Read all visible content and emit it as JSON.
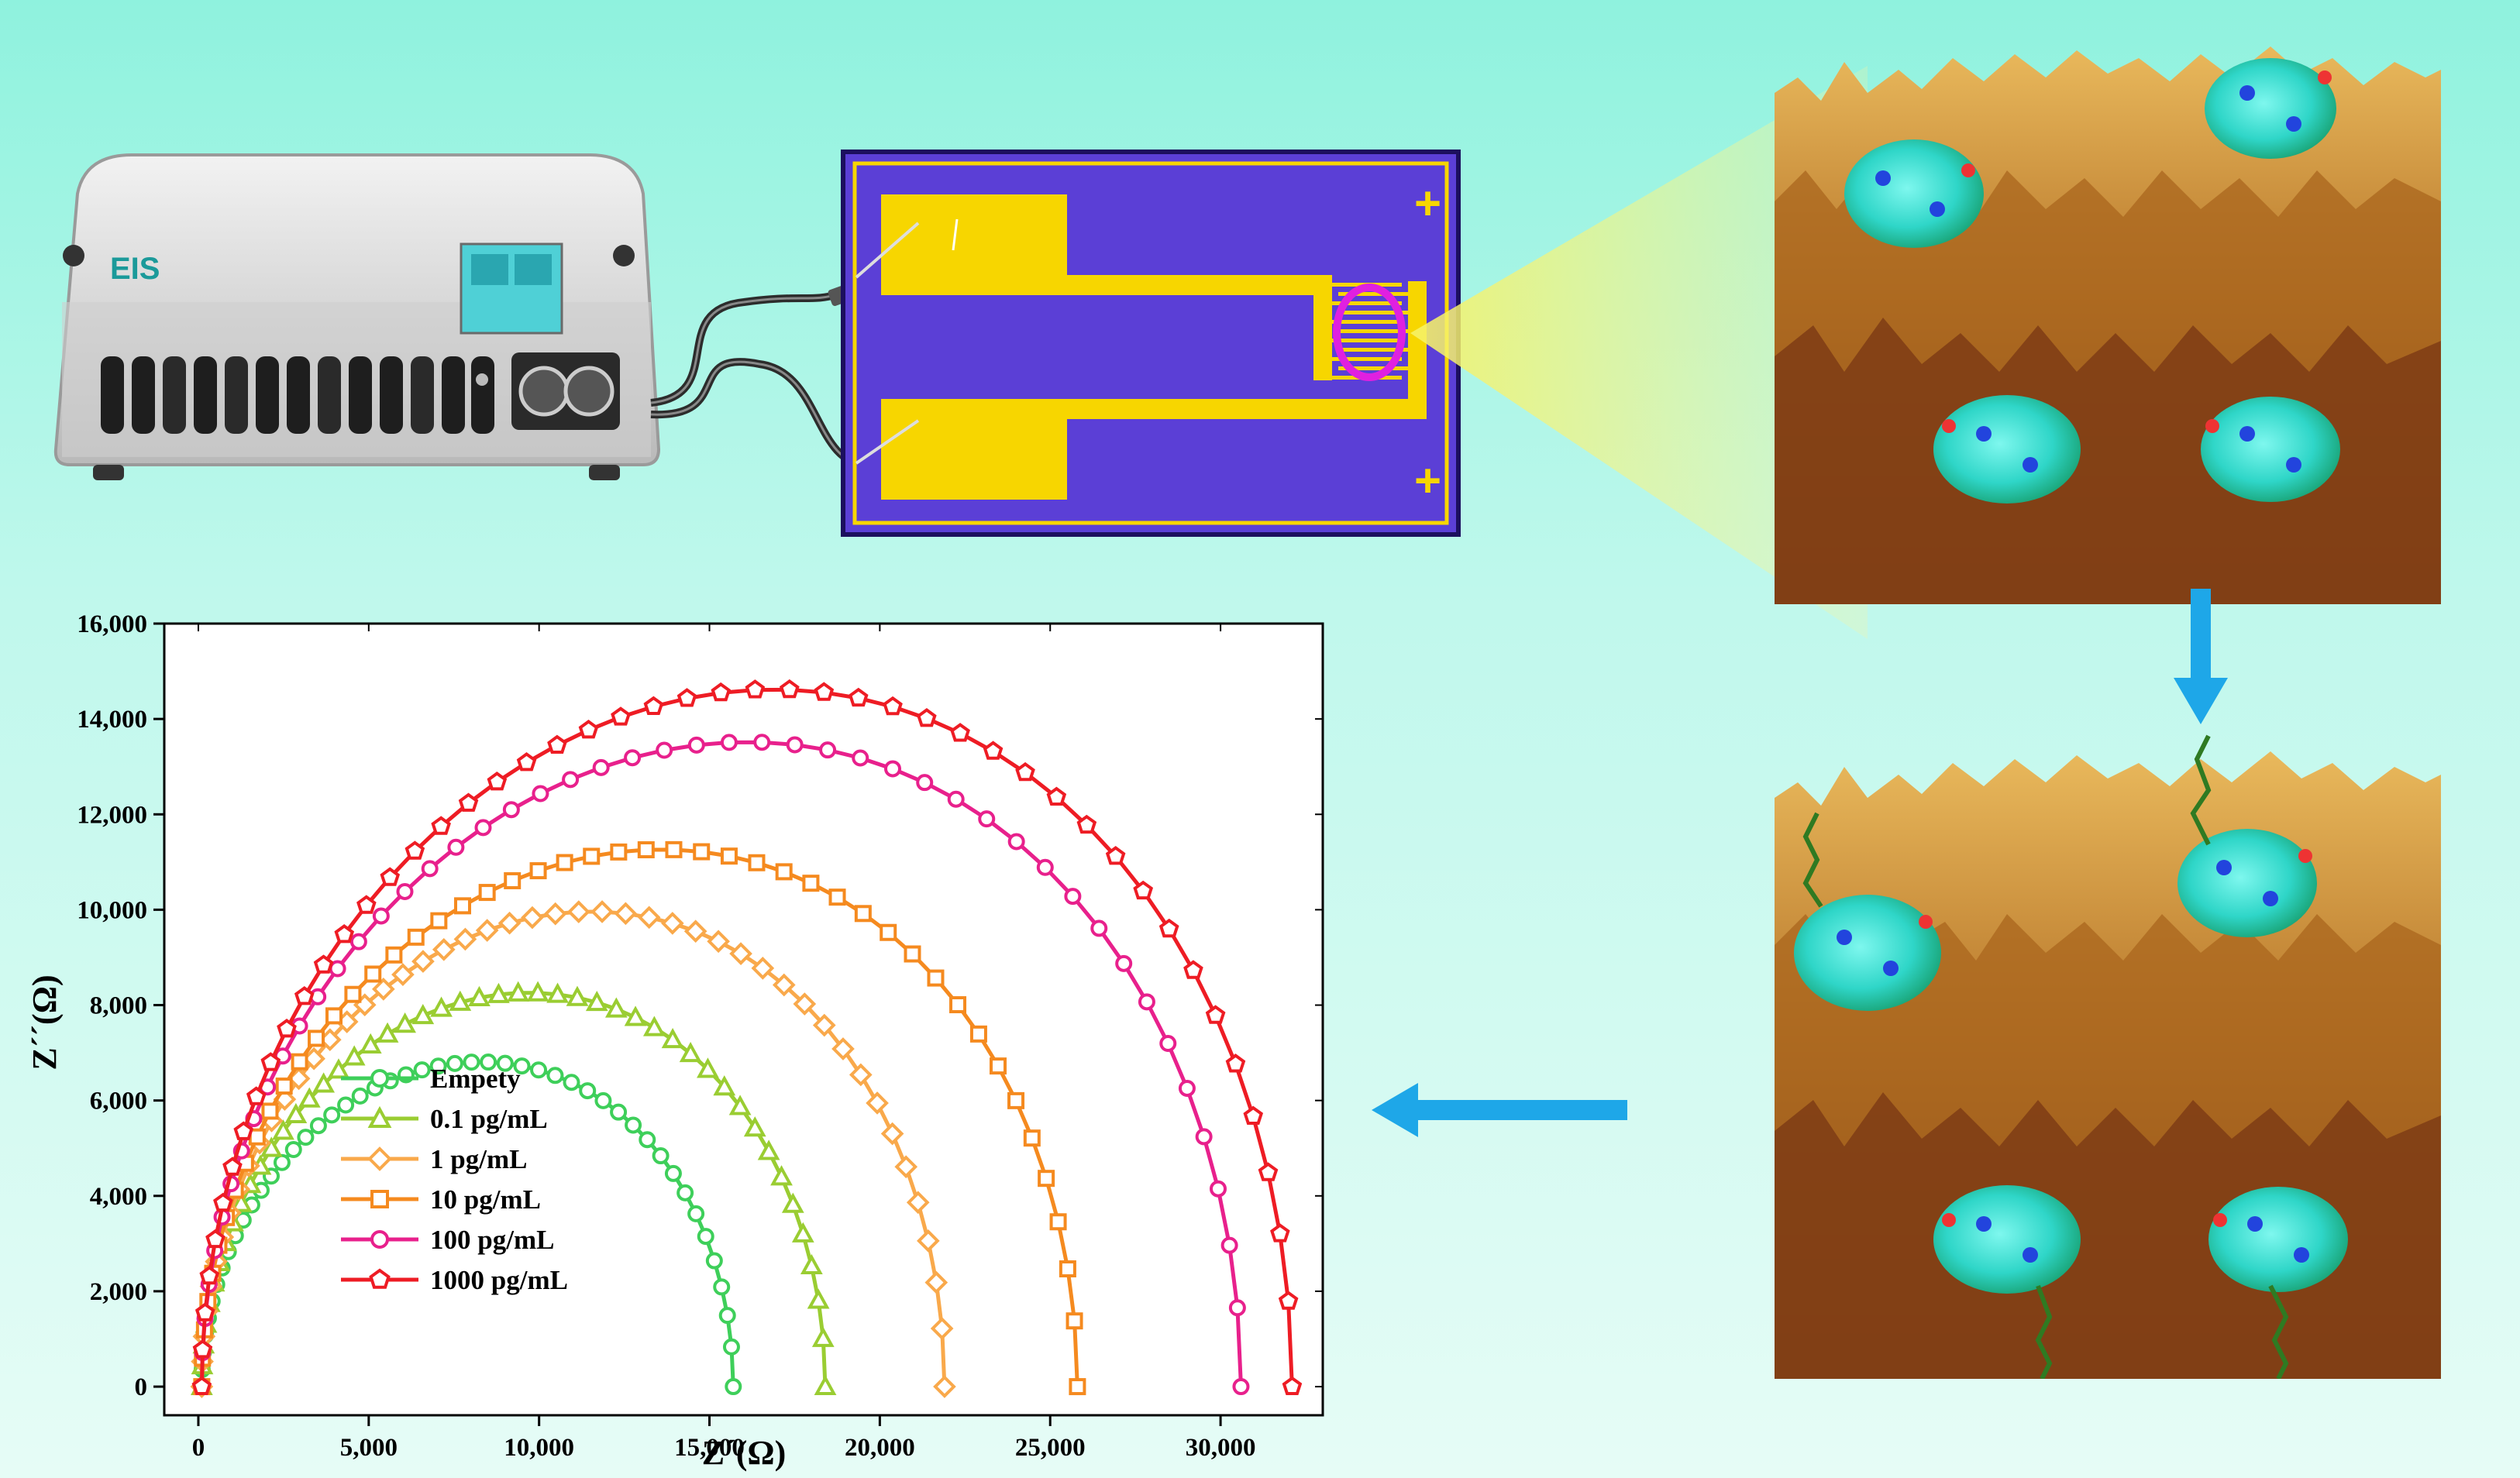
{
  "device": {
    "label": "EIS"
  },
  "electrode": {
    "plus_symbol": "+"
  },
  "colors": {
    "series": [
      "#3ecf5a",
      "#9acd32",
      "#f9a94b",
      "#f58a1f",
      "#e8208c",
      "#ee1c24"
    ],
    "electrode_bg": "#5b3fd6",
    "electrode_metal": "#f7d600",
    "ring": "#e020e0",
    "arrow": "#1ea7e8"
  },
  "chart_data": {
    "type": "scatter",
    "xlabel": "Z´(Ω)",
    "ylabel": "Z´´(Ω)",
    "xlim": [
      -1000,
      33000
    ],
    "ylim": [
      -600,
      16000
    ],
    "xticks": [
      0,
      5000,
      10000,
      15000,
      20000,
      25000,
      30000
    ],
    "xtick_labels": [
      "0",
      "5,000",
      "10,000",
      "15,000",
      "20,000",
      "25,000",
      "30,000"
    ],
    "yticks": [
      0,
      2000,
      4000,
      6000,
      8000,
      10000,
      12000,
      14000,
      16000
    ],
    "ytick_labels": [
      "0",
      "2,000",
      "4,000",
      "6,000",
      "8,000",
      "10,000",
      "12,000",
      "14,000",
      "16,000"
    ],
    "legend_position": "bottom-left",
    "series": [
      {
        "name": "Empety",
        "marker": "circle",
        "color": "#3ecf5a",
        "rs": 100,
        "rct": 15600,
        "ymax": 6800
      },
      {
        "name": "0.1 pg/mL",
        "marker": "triangle",
        "color": "#9acd32",
        "rs": 100,
        "rct": 18300,
        "ymax": 8250
      },
      {
        "name": "1 pg/mL",
        "marker": "diamond",
        "color": "#f9a94b",
        "rs": 100,
        "rct": 21800,
        "ymax": 9950
      },
      {
        "name": "10 pg/mL",
        "marker": "square",
        "color": "#f58a1f",
        "rs": 100,
        "rct": 25700,
        "ymax": 11250
      },
      {
        "name": "100 pg/mL",
        "marker": "circle",
        "color": "#e8208c",
        "rs": 100,
        "rct": 30500,
        "ymax": 13500
      },
      {
        "name": "1000 pg/mL",
        "marker": "pentagon",
        "color": "#ee1c24",
        "rs": 100,
        "rct": 32000,
        "ymax": 14600
      }
    ]
  }
}
